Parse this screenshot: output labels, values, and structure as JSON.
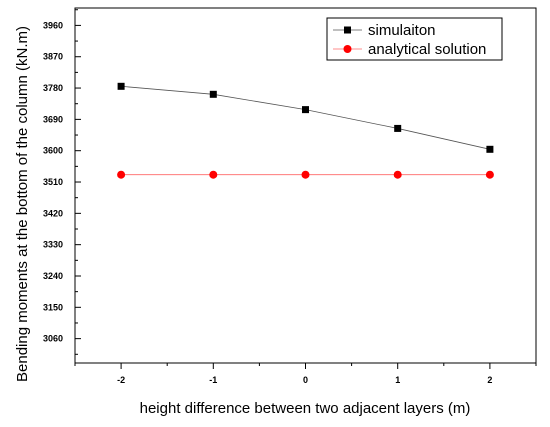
{
  "chart_data": {
    "type": "line",
    "title": "",
    "xlabel": "height difference between two adjacent layers (m)",
    "ylabel": "Bending moments at the bottom of the column (kN.m)",
    "x": [
      -2,
      -1,
      0,
      1,
      2
    ],
    "xticks": [
      "-2",
      "-1",
      "0",
      "1",
      "2"
    ],
    "xlim": [
      -2.5,
      2.5
    ],
    "yticks": [
      "3060",
      "3150",
      "3240",
      "3330",
      "3420",
      "3510",
      "3600",
      "3690",
      "3780",
      "3870",
      "3960"
    ],
    "ylim": [
      2990,
      4010
    ],
    "grid": false,
    "legend": "top-right",
    "series": [
      {
        "name": "simulaiton",
        "values": [
          3785,
          3762,
          3718,
          3664,
          3604
        ],
        "color": "#000000",
        "line_color": "#555555",
        "marker": "square"
      },
      {
        "name": "analytical solution",
        "values": [
          3531,
          3531,
          3531,
          3531,
          3531
        ],
        "color": "#ff0000",
        "line_color": "#ff6666",
        "marker": "circle"
      }
    ]
  }
}
